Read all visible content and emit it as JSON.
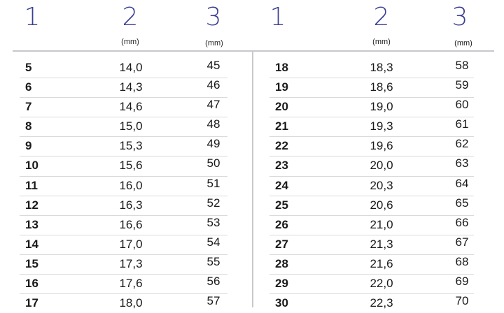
{
  "header": {
    "col1": "1",
    "col2": "2",
    "col3": "3",
    "unit2": "(mm)",
    "unit3": "(mm)"
  },
  "left_rows": [
    [
      "5",
      "14,0",
      "45"
    ],
    [
      "6",
      "14,3",
      "46"
    ],
    [
      "7",
      "14,6",
      "47"
    ],
    [
      "8",
      "15,0",
      "48"
    ],
    [
      "9",
      "15,3",
      "49"
    ],
    [
      "10",
      "15,6",
      "50"
    ],
    [
      "11",
      "16,0",
      "51"
    ],
    [
      "12",
      "16,3",
      "52"
    ],
    [
      "13",
      "16,6",
      "53"
    ],
    [
      "14",
      "17,0",
      "54"
    ],
    [
      "15",
      "17,3",
      "55"
    ],
    [
      "16",
      "17,6",
      "56"
    ],
    [
      "17",
      "18,0",
      "57"
    ]
  ],
  "right_rows": [
    [
      "18",
      "18,3",
      "58"
    ],
    [
      "19",
      "18,6",
      "59"
    ],
    [
      "20",
      "19,0",
      "60"
    ],
    [
      "21",
      "19,3",
      "61"
    ],
    [
      "22",
      "19,6",
      "62"
    ],
    [
      "23",
      "20,0",
      "63"
    ],
    [
      "24",
      "20,3",
      "64"
    ],
    [
      "25",
      "20,6",
      "65"
    ],
    [
      "26",
      "21,0",
      "66"
    ],
    [
      "27",
      "21,3",
      "67"
    ],
    [
      "28",
      "21,6",
      "68"
    ],
    [
      "29",
      "22,0",
      "69"
    ],
    [
      "30",
      "22,3",
      "70"
    ]
  ]
}
